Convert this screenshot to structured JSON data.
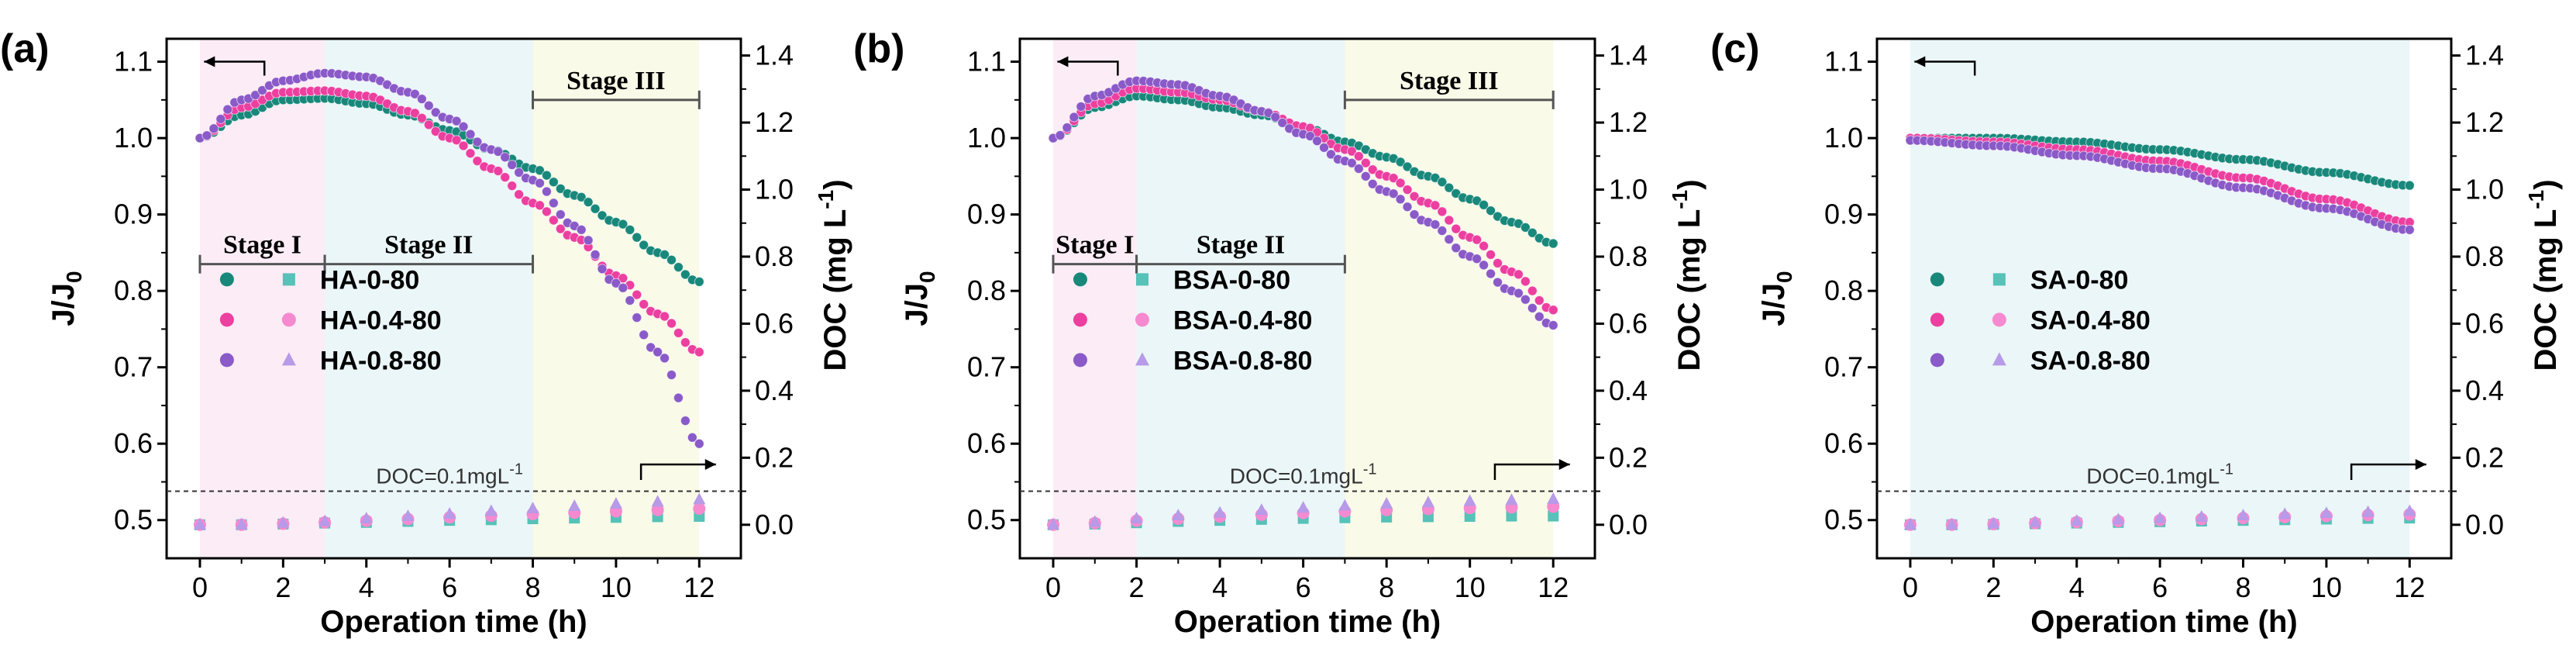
{
  "chart_data": [
    {
      "type": "scatter",
      "panel_label": "(a)",
      "xlabel": "Operation time (h)",
      "ylabel_left": "J/J",
      "ylabel_left_sub": "0",
      "ylabel_right": "DOC (mg L",
      "ylabel_right_sup": "-1",
      "ylabel_right_close": ")",
      "xlim": [
        -0.8,
        13
      ],
      "ylim_left": [
        0.45,
        1.13
      ],
      "ylim_right": [
        -0.1,
        1.45
      ],
      "x_ticks": [
        "0",
        "2",
        "4",
        "6",
        "8",
        "10",
        "12"
      ],
      "y_left_ticks": [
        "0.5",
        "0.6",
        "0.7",
        "0.8",
        "0.9",
        "1.0",
        "1.1"
      ],
      "y_right_ticks": [
        "0.0",
        "0.2",
        "0.4",
        "0.6",
        "0.8",
        "1.0",
        "1.2",
        "1.4"
      ],
      "legend": [
        "HA-0-80",
        "HA-0.4-80",
        "HA-0.8-80"
      ],
      "colors": [
        "#18887b",
        "#ec3fa0",
        "#8a5ac8"
      ],
      "doc_colors": [
        "#56c2b8",
        "#f58ad0",
        "#b79ae8"
      ],
      "doc_threshold": 0.1,
      "doc_label": "DOC=0.1mgL",
      "doc_label_sup": "-1",
      "stages": [
        {
          "label": "Stage I",
          "start": 0,
          "end": 3,
          "y": 0.835
        },
        {
          "label": "Stage II",
          "start": 3,
          "end": 8,
          "y": 0.835
        },
        {
          "label": "Stage III",
          "start": 8,
          "end": 12,
          "y": 1.05
        }
      ],
      "stage_shading": [
        {
          "start": 0,
          "end": 3,
          "color": "#fbe6f2"
        },
        {
          "start": 3,
          "end": 8,
          "color": "#e4f3f6"
        },
        {
          "start": 8,
          "end": 12,
          "color": "#f7f8e0"
        }
      ],
      "flux_series": [
        {
          "name": "HA-0-80",
          "x_end": 12,
          "points": [
            [
              0,
              1.0
            ],
            [
              1,
              1.03
            ],
            [
              2,
              1.05
            ],
            [
              3,
              1.052
            ],
            [
              4,
              1.045
            ],
            [
              5,
              1.03
            ],
            [
              6,
              1.01
            ],
            [
              7,
              0.985
            ],
            [
              8,
              0.96
            ],
            [
              9,
              0.925
            ],
            [
              10,
              0.89
            ],
            [
              11,
              0.85
            ],
            [
              12,
              0.812
            ]
          ]
        },
        {
          "name": "HA-0.4-80",
          "x_end": 12,
          "points": [
            [
              0,
              1.0
            ],
            [
              1,
              1.04
            ],
            [
              2,
              1.06
            ],
            [
              3,
              1.062
            ],
            [
              4,
              1.055
            ],
            [
              5,
              1.035
            ],
            [
              6,
              1.0
            ],
            [
              7,
              0.96
            ],
            [
              8,
              0.915
            ],
            [
              9,
              0.87
            ],
            [
              10,
              0.82
            ],
            [
              11,
              0.77
            ],
            [
              12,
              0.72
            ]
          ]
        },
        {
          "name": "HA-0.8-80",
          "x_end": 12,
          "points": [
            [
              0,
              1.0
            ],
            [
              1,
              1.05
            ],
            [
              2,
              1.075
            ],
            [
              3,
              1.085
            ],
            [
              4,
              1.08
            ],
            [
              5,
              1.06
            ],
            [
              6,
              1.025
            ],
            [
              7,
              0.985
            ],
            [
              8,
              0.945
            ],
            [
              9,
              0.885
            ],
            [
              10,
              0.81
            ],
            [
              11,
              0.72
            ],
            [
              12,
              0.6
            ]
          ]
        }
      ],
      "doc_series": [
        {
          "name": "HA-0-80",
          "x": [
            0,
            1,
            2,
            3,
            4,
            5,
            6,
            7,
            8,
            9,
            10,
            11,
            12
          ],
          "values": [
            0.0,
            0.0,
            0.002,
            0.005,
            0.007,
            0.01,
            0.013,
            0.015,
            0.018,
            0.02,
            0.022,
            0.024,
            0.025
          ]
        },
        {
          "name": "HA-0.4-80",
          "x": [
            0,
            1,
            2,
            3,
            4,
            5,
            6,
            7,
            8,
            9,
            10,
            11,
            12
          ],
          "values": [
            0.0,
            0.0,
            0.003,
            0.007,
            0.012,
            0.017,
            0.022,
            0.027,
            0.032,
            0.036,
            0.04,
            0.044,
            0.048
          ]
        },
        {
          "name": "HA-0.8-80",
          "x": [
            0,
            1,
            2,
            3,
            4,
            5,
            6,
            7,
            8,
            9,
            10,
            11,
            12
          ],
          "values": [
            0.0,
            0.0,
            0.005,
            0.01,
            0.018,
            0.025,
            0.032,
            0.04,
            0.048,
            0.055,
            0.062,
            0.068,
            0.075
          ]
        }
      ]
    },
    {
      "type": "scatter",
      "panel_label": "(b)",
      "xlabel": "Operation time (h)",
      "ylabel_left": "J/J",
      "ylabel_left_sub": "0",
      "ylabel_right": "DOC (mg L",
      "ylabel_right_sup": "-1",
      "ylabel_right_close": ")",
      "xlim": [
        -0.8,
        13
      ],
      "ylim_left": [
        0.45,
        1.13
      ],
      "ylim_right": [
        -0.1,
        1.45
      ],
      "x_ticks": [
        "0",
        "2",
        "4",
        "6",
        "8",
        "10",
        "12"
      ],
      "y_left_ticks": [
        "0.5",
        "0.6",
        "0.7",
        "0.8",
        "0.9",
        "1.0",
        "1.1"
      ],
      "y_right_ticks": [
        "0.0",
        "0.2",
        "0.4",
        "0.6",
        "0.8",
        "1.0",
        "1.2",
        "1.4"
      ],
      "legend": [
        "BSA-0-80",
        "BSA-0.4-80",
        "BSA-0.8-80"
      ],
      "colors": [
        "#18887b",
        "#ec3fa0",
        "#8a5ac8"
      ],
      "doc_colors": [
        "#56c2b8",
        "#f58ad0",
        "#b79ae8"
      ],
      "doc_threshold": 0.1,
      "doc_label": "DOC=0.1mgL",
      "doc_label_sup": "-1",
      "stages": [
        {
          "label": "Stage I",
          "start": 0,
          "end": 2,
          "y": 0.835
        },
        {
          "label": "Stage II",
          "start": 2,
          "end": 7,
          "y": 0.835
        },
        {
          "label": "Stage III",
          "start": 7,
          "end": 12,
          "y": 1.05
        }
      ],
      "stage_shading": [
        {
          "start": 0,
          "end": 2,
          "color": "#fbe6f2"
        },
        {
          "start": 2,
          "end": 7,
          "color": "#e4f3f6"
        },
        {
          "start": 7,
          "end": 12,
          "color": "#f7f8e0"
        }
      ],
      "flux_series": [
        {
          "name": "BSA-0-80",
          "x_end": 12,
          "points": [
            [
              0,
              1.0
            ],
            [
              1,
              1.04
            ],
            [
              2,
              1.055
            ],
            [
              3,
              1.05
            ],
            [
              4,
              1.04
            ],
            [
              5,
              1.03
            ],
            [
              6,
              1.015
            ],
            [
              7,
              0.995
            ],
            [
              8,
              0.975
            ],
            [
              9,
              0.95
            ],
            [
              10,
              0.92
            ],
            [
              11,
              0.89
            ],
            [
              12,
              0.862
            ]
          ]
        },
        {
          "name": "BSA-0.4-80",
          "x_end": 12,
          "points": [
            [
              0,
              1.0
            ],
            [
              1,
              1.045
            ],
            [
              2,
              1.065
            ],
            [
              3,
              1.06
            ],
            [
              4,
              1.05
            ],
            [
              5,
              1.035
            ],
            [
              6,
              1.015
            ],
            [
              7,
              0.985
            ],
            [
              8,
              0.95
            ],
            [
              9,
              0.915
            ],
            [
              10,
              0.87
            ],
            [
              11,
              0.825
            ],
            [
              12,
              0.775
            ]
          ]
        },
        {
          "name": "BSA-0.8-80",
          "x_end": 12,
          "points": [
            [
              0,
              1.0
            ],
            [
              1,
              1.055
            ],
            [
              2,
              1.075
            ],
            [
              3,
              1.07
            ],
            [
              4,
              1.055
            ],
            [
              5,
              1.035
            ],
            [
              6,
              1.005
            ],
            [
              7,
              0.97
            ],
            [
              8,
              0.93
            ],
            [
              9,
              0.89
            ],
            [
              10,
              0.845
            ],
            [
              11,
              0.8
            ],
            [
              12,
              0.755
            ]
          ]
        }
      ],
      "doc_series": [
        {
          "name": "BSA-0-80",
          "x": [
            0,
            1,
            2,
            3,
            4,
            5,
            6,
            7,
            8,
            9,
            10,
            11,
            12
          ],
          "values": [
            0.0,
            0.002,
            0.006,
            0.01,
            0.013,
            0.016,
            0.019,
            0.021,
            0.023,
            0.024,
            0.025,
            0.026,
            0.026
          ]
        },
        {
          "name": "BSA-0.4-80",
          "x": [
            0,
            1,
            2,
            3,
            4,
            5,
            6,
            7,
            8,
            9,
            10,
            11,
            12
          ],
          "values": [
            0.0,
            0.005,
            0.012,
            0.018,
            0.024,
            0.03,
            0.035,
            0.04,
            0.044,
            0.047,
            0.05,
            0.052,
            0.054
          ]
        },
        {
          "name": "BSA-0.8-80",
          "x": [
            0,
            1,
            2,
            3,
            4,
            5,
            6,
            7,
            8,
            9,
            10,
            11,
            12
          ],
          "values": [
            0.0,
            0.008,
            0.018,
            0.027,
            0.035,
            0.043,
            0.05,
            0.056,
            0.062,
            0.066,
            0.07,
            0.073,
            0.076
          ]
        }
      ]
    },
    {
      "type": "scatter",
      "panel_label": "(c)",
      "xlabel": "Operation time (h)",
      "ylabel_left": "J/J",
      "ylabel_left_sub": "0",
      "ylabel_right": "DOC (mg L",
      "ylabel_right_sup": "-1",
      "ylabel_right_close": ")",
      "xlim": [
        -0.8,
        13
      ],
      "ylim_left": [
        0.45,
        1.13
      ],
      "ylim_right": [
        -0.1,
        1.45
      ],
      "x_ticks": [
        "0",
        "2",
        "4",
        "6",
        "8",
        "10",
        "12"
      ],
      "y_left_ticks": [
        "0.5",
        "0.6",
        "0.7",
        "0.8",
        "0.9",
        "1.0",
        "1.1"
      ],
      "y_right_ticks": [
        "0.0",
        "0.2",
        "0.4",
        "0.6",
        "0.8",
        "1.0",
        "1.2",
        "1.4"
      ],
      "legend": [
        "SA-0-80",
        "SA-0.4-80",
        "SA-0.8-80"
      ],
      "colors": [
        "#18887b",
        "#ec3fa0",
        "#8a5ac8"
      ],
      "doc_colors": [
        "#56c2b8",
        "#f58ad0",
        "#b79ae8"
      ],
      "doc_threshold": 0.1,
      "doc_label": "DOC=0.1mgL",
      "doc_label_sup": "-1",
      "stages": [],
      "stage_shading": [
        {
          "start": 0,
          "end": 12,
          "color": "#e4f3f6"
        }
      ],
      "flux_series": [
        {
          "name": "SA-0-80",
          "x_end": 12,
          "points": [
            [
              0,
              1.0
            ],
            [
              2,
              1.0
            ],
            [
              4,
              0.995
            ],
            [
              6,
              0.985
            ],
            [
              8,
              0.972
            ],
            [
              10,
              0.955
            ],
            [
              12,
              0.938
            ]
          ]
        },
        {
          "name": "SA-0.4-80",
          "x_end": 12,
          "points": [
            [
              0,
              1.0
            ],
            [
              2,
              0.995
            ],
            [
              4,
              0.985
            ],
            [
              6,
              0.97
            ],
            [
              8,
              0.948
            ],
            [
              10,
              0.92
            ],
            [
              12,
              0.89
            ]
          ]
        },
        {
          "name": "SA-0.8-80",
          "x_end": 12,
          "points": [
            [
              0,
              0.997
            ],
            [
              2,
              0.99
            ],
            [
              4,
              0.977
            ],
            [
              6,
              0.96
            ],
            [
              8,
              0.935
            ],
            [
              10,
              0.908
            ],
            [
              12,
              0.88
            ]
          ]
        }
      ],
      "doc_series": [
        {
          "name": "SA-0-80",
          "x": [
            0,
            1,
            2,
            3,
            4,
            5,
            6,
            7,
            8,
            9,
            10,
            11,
            12
          ],
          "values": [
            0.0,
            0.0,
            0.001,
            0.003,
            0.005,
            0.007,
            0.009,
            0.011,
            0.013,
            0.015,
            0.017,
            0.019,
            0.02
          ]
        },
        {
          "name": "SA-0.4-80",
          "x": [
            0,
            1,
            2,
            3,
            4,
            5,
            6,
            7,
            8,
            9,
            10,
            11,
            12
          ],
          "values": [
            0.0,
            0.0,
            0.002,
            0.005,
            0.008,
            0.011,
            0.014,
            0.017,
            0.02,
            0.023,
            0.026,
            0.029,
            0.031
          ]
        },
        {
          "name": "SA-0.8-80",
          "x": [
            0,
            1,
            2,
            3,
            4,
            5,
            6,
            7,
            8,
            9,
            10,
            11,
            12
          ],
          "values": [
            0.0,
            0.0,
            0.003,
            0.007,
            0.011,
            0.015,
            0.019,
            0.023,
            0.027,
            0.031,
            0.034,
            0.037,
            0.04
          ]
        }
      ]
    }
  ]
}
